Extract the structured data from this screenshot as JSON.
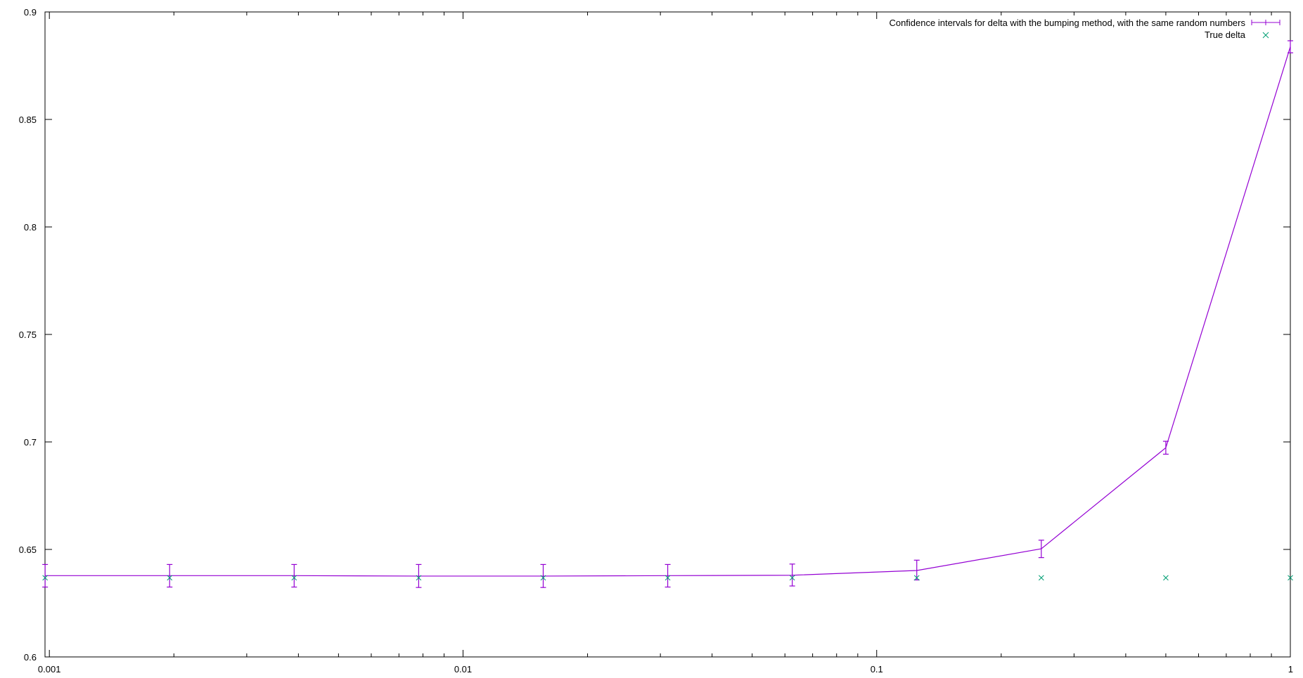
{
  "chart_data": {
    "type": "line",
    "xscale": "log",
    "xlim": [
      0.000976,
      1
    ],
    "ylim": [
      0.6,
      0.9
    ],
    "grid": false,
    "legend_position": "top-right",
    "x_ticks": [
      {
        "value": 0.001,
        "label": "0.001"
      },
      {
        "value": 0.01,
        "label": "0.01"
      },
      {
        "value": 0.1,
        "label": "0.1"
      },
      {
        "value": 1,
        "label": "1"
      }
    ],
    "y_ticks": [
      {
        "value": 0.6,
        "label": "0.6"
      },
      {
        "value": 0.65,
        "label": "0.65"
      },
      {
        "value": 0.7,
        "label": "0.7"
      },
      {
        "value": 0.75,
        "label": "0.75"
      },
      {
        "value": 0.8,
        "label": "0.8"
      },
      {
        "value": 0.85,
        "label": "0.85"
      },
      {
        "value": 0.9,
        "label": "0.9"
      }
    ],
    "series": [
      {
        "name": "Confidence intervals for delta with the bumping method, with the same random numbers",
        "style": "errorbar-line",
        "color": "#9400d3",
        "points": [
          {
            "x": 0.0009765625,
            "y": 0.6378,
            "lo": 0.6325,
            "hi": 0.643
          },
          {
            "x": 0.001953125,
            "y": 0.6378,
            "lo": 0.6325,
            "hi": 0.643
          },
          {
            "x": 0.00390625,
            "y": 0.6378,
            "lo": 0.6325,
            "hi": 0.643
          },
          {
            "x": 0.0078125,
            "y": 0.6376,
            "lo": 0.6323,
            "hi": 0.643
          },
          {
            "x": 0.015625,
            "y": 0.6376,
            "lo": 0.6323,
            "hi": 0.643
          },
          {
            "x": 0.03125,
            "y": 0.6378,
            "lo": 0.6325,
            "hi": 0.643
          },
          {
            "x": 0.0625,
            "y": 0.638,
            "lo": 0.633,
            "hi": 0.6432
          },
          {
            "x": 0.125,
            "y": 0.6402,
            "lo": 0.6358,
            "hi": 0.645
          },
          {
            "x": 0.25,
            "y": 0.6503,
            "lo": 0.6462,
            "hi": 0.6543
          },
          {
            "x": 0.5,
            "y": 0.6973,
            "lo": 0.6943,
            "hi": 0.7003
          },
          {
            "x": 1,
            "y": 0.8838,
            "lo": 0.881,
            "hi": 0.8866
          }
        ]
      },
      {
        "name": "True delta",
        "style": "points",
        "color": "#009e73",
        "points": [
          {
            "x": 0.0009765625,
            "y": 0.6368
          },
          {
            "x": 0.001953125,
            "y": 0.6368
          },
          {
            "x": 0.00390625,
            "y": 0.6368
          },
          {
            "x": 0.0078125,
            "y": 0.6368
          },
          {
            "x": 0.015625,
            "y": 0.6368
          },
          {
            "x": 0.03125,
            "y": 0.6368
          },
          {
            "x": 0.0625,
            "y": 0.6368
          },
          {
            "x": 0.125,
            "y": 0.6368
          },
          {
            "x": 0.25,
            "y": 0.6368
          },
          {
            "x": 0.5,
            "y": 0.6368
          },
          {
            "x": 1,
            "y": 0.6368
          }
        ]
      }
    ]
  }
}
